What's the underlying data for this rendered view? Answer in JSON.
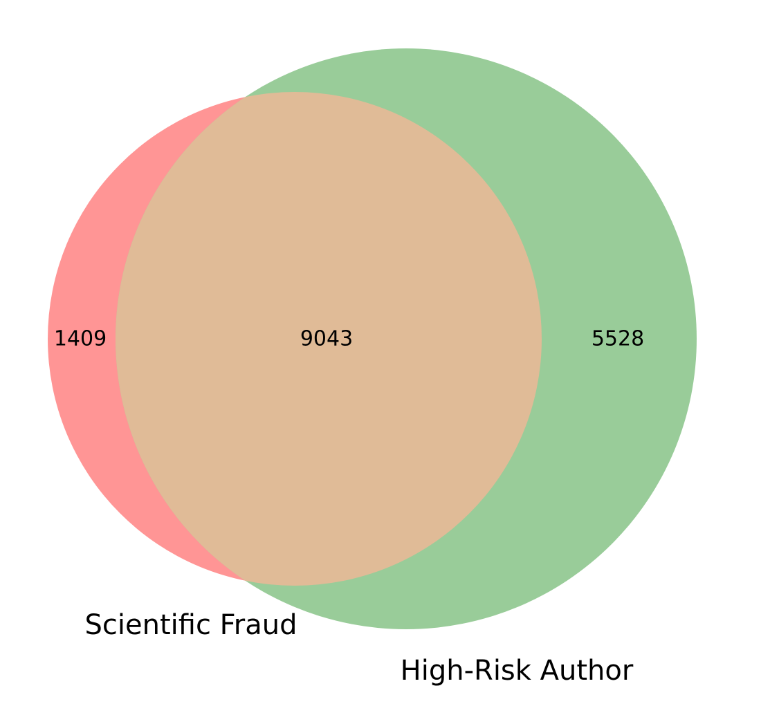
{
  "venn": {
    "sets": [
      {
        "name": "Scientific Fraud",
        "size": 10452,
        "color": "#ff9595"
      },
      {
        "name": "High-Risk Author",
        "size": 14571,
        "color": "#99cc99"
      }
    ],
    "regions": {
      "only_a": "1409",
      "intersection": "9043",
      "only_b": "5528"
    },
    "intersection_color": "#e0bb97"
  }
}
